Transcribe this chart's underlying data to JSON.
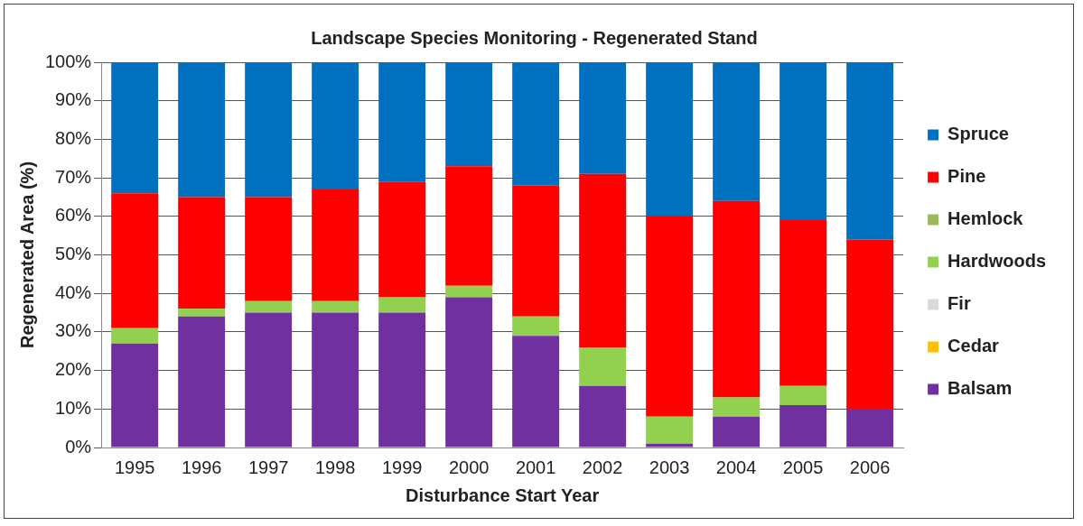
{
  "chart_data": {
    "type": "bar",
    "title": "Landscape Species Monitoring - Regenerated Stand",
    "xlabel": "Disturbance Start Year",
    "ylabel": "Regenerated Area (%)",
    "categories": [
      "1995",
      "1996",
      "1997",
      "1998",
      "1999",
      "2000",
      "2001",
      "2002",
      "2003",
      "2004",
      "2005",
      "2006"
    ],
    "stacked": true,
    "series": [
      {
        "name": "Balsam",
        "color": "#7030a0",
        "values": [
          27,
          34,
          35,
          35,
          35,
          39,
          29,
          16,
          1,
          8,
          11,
          10
        ]
      },
      {
        "name": "Cedar",
        "color": "#ffc000",
        "values": [
          0,
          0,
          0,
          0,
          0,
          0,
          0,
          0,
          0,
          0,
          0,
          0
        ]
      },
      {
        "name": "Fir",
        "color": "#d9d9d9",
        "values": [
          0,
          0,
          0,
          0,
          0,
          0,
          0,
          0,
          0,
          0,
          0,
          0
        ]
      },
      {
        "name": "Hardwoods",
        "color": "#92d050",
        "values": [
          4,
          2,
          3,
          3,
          4,
          3,
          5,
          10,
          7,
          5,
          5,
          0
        ]
      },
      {
        "name": "Hemlock",
        "color": "#9bbb59",
        "values": [
          0,
          0,
          0,
          0,
          0,
          0,
          0,
          0,
          0,
          0,
          0,
          0
        ]
      },
      {
        "name": "Pine",
        "color": "#ff0000",
        "values": [
          35,
          29,
          27,
          29,
          30,
          31,
          34,
          45,
          52,
          51,
          43,
          44
        ]
      },
      {
        "name": "Spruce",
        "color": "#0070c0",
        "values": [
          34,
          35,
          35,
          33,
          31,
          27,
          32,
          29,
          40,
          36,
          41,
          46
        ]
      }
    ],
    "ylim": [
      0,
      100
    ],
    "yticks": [
      {
        "value": 0,
        "label": "0%"
      },
      {
        "value": 10,
        "label": "10%"
      },
      {
        "value": 20,
        "label": "20%"
      },
      {
        "value": 30,
        "label": "30%"
      },
      {
        "value": 40,
        "label": "40%"
      },
      {
        "value": 50,
        "label": "50%"
      },
      {
        "value": 60,
        "label": "60%"
      },
      {
        "value": 70,
        "label": "70%"
      },
      {
        "value": 80,
        "label": "80%"
      },
      {
        "value": 90,
        "label": "90%"
      },
      {
        "value": 100,
        "label": "100%"
      }
    ],
    "grid": "y",
    "legend": "right"
  }
}
